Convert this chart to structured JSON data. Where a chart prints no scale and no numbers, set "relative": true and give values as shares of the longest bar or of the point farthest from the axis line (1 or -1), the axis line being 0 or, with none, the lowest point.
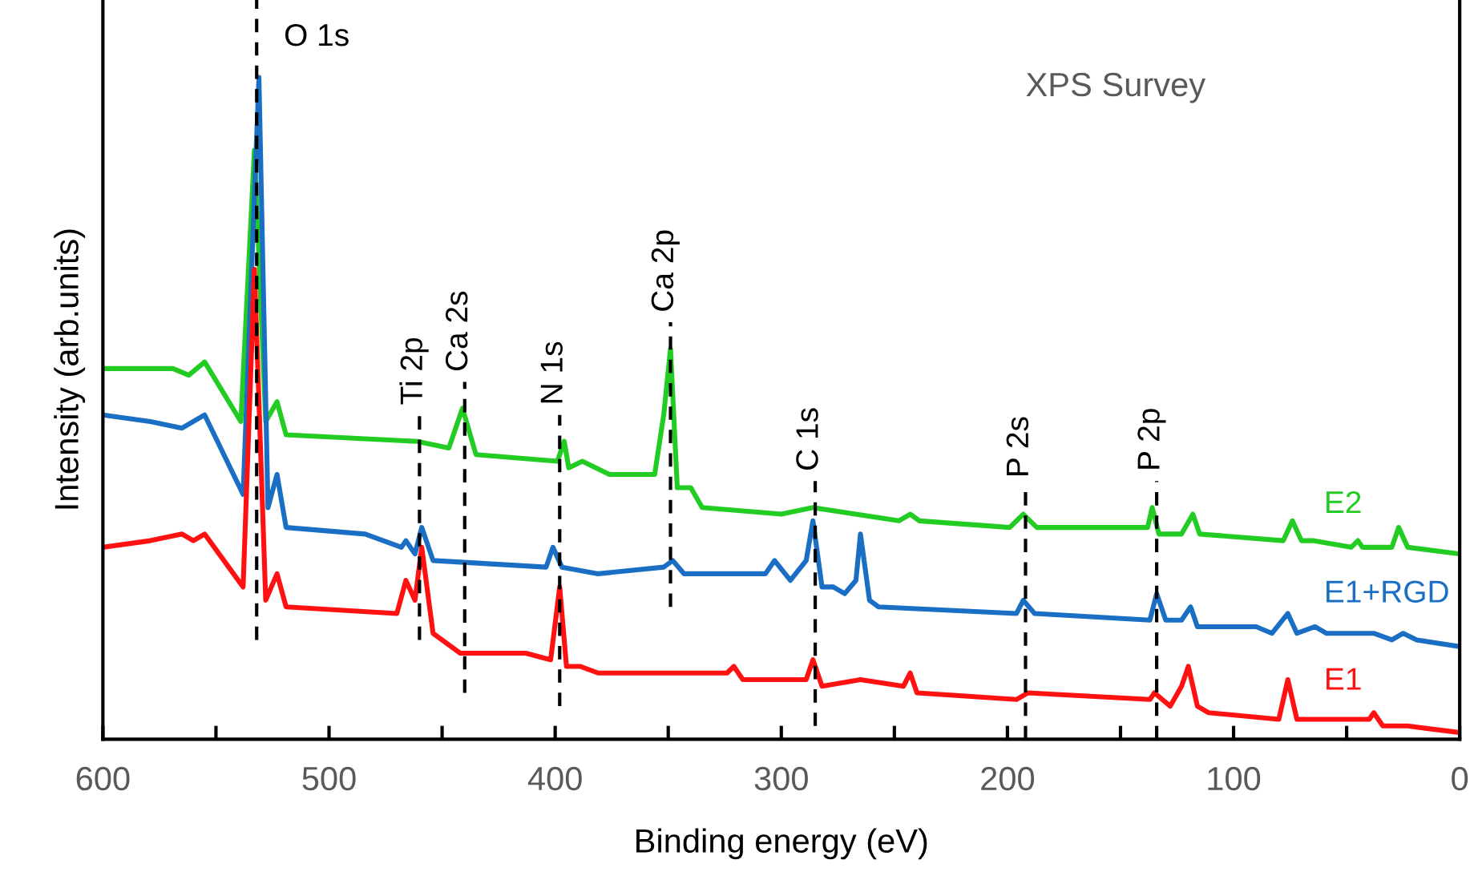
{
  "chart_data": {
    "type": "line",
    "title": "XPS Survey",
    "xlabel": "Binding energy (eV)",
    "ylabel": "Intensity (arb.units)",
    "relative": true,
    "xlim": [
      600,
      0
    ],
    "xticks": [
      600,
      {
        "value": 550,
        "label": null
      },
      500,
      {
        "value": 450,
        "label": null
      },
      400,
      {
        "value": 350,
        "label": null
      },
      300,
      {
        "value": 250,
        "label": null
      },
      200,
      {
        "value": 150,
        "label": null
      },
      100,
      {
        "value": 50,
        "label": null
      },
      0
    ],
    "line_style": "solid",
    "grid": false,
    "legend": false,
    "series": [
      {
        "name": "E2",
        "color": "#22cc22",
        "x": [
          600,
          569,
          562,
          555,
          539,
          533,
          528,
          523,
          519,
          461,
          447,
          441,
          435,
          399,
          396,
          394,
          388,
          376,
          360,
          356,
          352,
          349,
          346,
          340,
          335,
          300,
          286,
          248,
          243,
          239,
          199,
          193,
          187,
          138,
          136,
          133,
          123,
          118,
          115,
          78,
          74,
          70,
          65,
          48,
          45,
          43,
          30,
          27,
          23,
          0
        ],
        "values": [
          0.56,
          0.56,
          0.55,
          0.57,
          0.48,
          0.89,
          0.48,
          0.51,
          0.46,
          0.45,
          0.44,
          0.5,
          0.43,
          0.42,
          0.45,
          0.41,
          0.42,
          0.4,
          0.4,
          0.4,
          0.49,
          0.59,
          0.38,
          0.38,
          0.35,
          0.34,
          0.35,
          0.33,
          0.34,
          0.33,
          0.32,
          0.34,
          0.32,
          0.32,
          0.35,
          0.31,
          0.31,
          0.34,
          0.31,
          0.3,
          0.33,
          0.3,
          0.3,
          0.29,
          0.3,
          0.29,
          0.29,
          0.32,
          0.29,
          0.28
        ]
      },
      {
        "name": "E1+RGD",
        "color": "#1a6fc4",
        "x": [
          600,
          579,
          565,
          555,
          538,
          531,
          527,
          523,
          519,
          484,
          468,
          466,
          462,
          459,
          454,
          404,
          401,
          397,
          381,
          352,
          348,
          343,
          307,
          303,
          296,
          289,
          286,
          282,
          277,
          272,
          267,
          265,
          261,
          257,
          196,
          193,
          188,
          137,
          134,
          130,
          123,
          119,
          116,
          90,
          83,
          76,
          72,
          64,
          59,
          38,
          30,
          25,
          19,
          0
        ],
        "values": [
          0.49,
          0.48,
          0.47,
          0.49,
          0.37,
          1.0,
          0.35,
          0.4,
          0.32,
          0.31,
          0.29,
          0.3,
          0.28,
          0.32,
          0.27,
          0.26,
          0.29,
          0.26,
          0.25,
          0.26,
          0.27,
          0.25,
          0.25,
          0.27,
          0.24,
          0.27,
          0.33,
          0.23,
          0.23,
          0.22,
          0.24,
          0.31,
          0.21,
          0.2,
          0.19,
          0.21,
          0.19,
          0.18,
          0.22,
          0.18,
          0.18,
          0.2,
          0.17,
          0.17,
          0.16,
          0.19,
          0.16,
          0.17,
          0.16,
          0.16,
          0.15,
          0.16,
          0.15,
          0.14
        ]
      },
      {
        "name": "E1",
        "color": "#ff1111",
        "x": [
          600,
          579,
          565,
          560,
          555,
          538,
          533,
          528,
          523,
          519,
          470,
          466,
          462,
          459,
          454,
          450,
          442,
          413,
          402,
          398,
          395,
          389,
          381,
          324,
          321,
          317,
          289,
          286,
          282,
          265,
          246,
          243,
          240,
          196,
          191,
          137,
          135,
          128,
          123,
          120,
          116,
          111,
          80,
          76,
          72,
          64,
          40,
          38,
          34,
          23,
          0
        ],
        "values": [
          0.29,
          0.3,
          0.31,
          0.3,
          0.31,
          0.23,
          0.71,
          0.21,
          0.25,
          0.2,
          0.19,
          0.24,
          0.21,
          0.29,
          0.16,
          0.15,
          0.13,
          0.13,
          0.12,
          0.23,
          0.11,
          0.11,
          0.1,
          0.1,
          0.11,
          0.09,
          0.09,
          0.12,
          0.08,
          0.09,
          0.08,
          0.1,
          0.07,
          0.06,
          0.07,
          0.06,
          0.07,
          0.05,
          0.08,
          0.11,
          0.05,
          0.04,
          0.03,
          0.09,
          0.03,
          0.03,
          0.03,
          0.04,
          0.02,
          0.02,
          0.01
        ]
      }
    ],
    "ref_lines": [
      {
        "axis": "x",
        "value": 532,
        "label": "O 1s",
        "color": "#000000",
        "line_style": "dashed"
      },
      {
        "axis": "x",
        "value": 460,
        "label": "Ti 2p",
        "color": "#000000",
        "line_style": "dashed"
      },
      {
        "axis": "x",
        "value": 440,
        "label": "Ca 2s",
        "color": "#000000",
        "line_style": "dashed"
      },
      {
        "axis": "x",
        "value": 398,
        "label": "N 1s",
        "color": "#000000",
        "line_style": "dashed"
      },
      {
        "axis": "x",
        "value": 349,
        "label": "Ca 2p",
        "color": "#000000",
        "line_style": "dashed"
      },
      {
        "axis": "x",
        "value": 285,
        "label": "C 1s",
        "color": "#000000",
        "line_style": "dashed"
      },
      {
        "axis": "x",
        "value": 192,
        "label": "P 2s",
        "color": "#000000",
        "line_style": "dashed"
      },
      {
        "axis": "x",
        "value": 134,
        "label": "P 2p",
        "color": "#000000",
        "line_style": "dashed"
      }
    ]
  }
}
